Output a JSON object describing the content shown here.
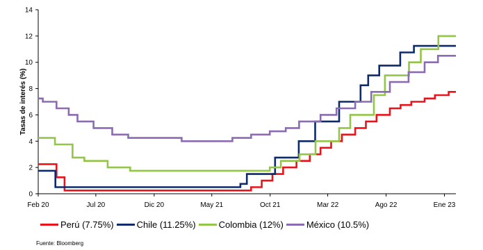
{
  "chart_data": {
    "type": "line",
    "step": true,
    "ylabel": "Tasas de interés (%)",
    "ylim": [
      0,
      14
    ],
    "yticks": [
      0,
      2,
      4,
      6,
      8,
      10,
      12,
      14
    ],
    "xlim": [
      "2020-02-01",
      "2023-01-31"
    ],
    "xticks": [
      {
        "label": "Feb 20",
        "date": "2020-02-01"
      },
      {
        "label": "Jul 20",
        "date": "2020-07-01"
      },
      {
        "label": "Dic 20",
        "date": "2020-12-01"
      },
      {
        "label": "May 21",
        "date": "2021-05-01"
      },
      {
        "label": "Oct 21",
        "date": "2021-10-01"
      },
      {
        "label": "Mar 22",
        "date": "2022-03-01"
      },
      {
        "label": "Ago 22",
        "date": "2022-08-01"
      },
      {
        "label": "Ene 23",
        "date": "2023-01-01"
      }
    ],
    "legend_position": "bottom",
    "series": [
      {
        "name": "Perú (7.75%)",
        "color": "#e8141c",
        "points": [
          [
            "2020-02-01",
            2.25
          ],
          [
            "2020-03-20",
            1.25
          ],
          [
            "2020-04-10",
            0.25
          ],
          [
            "2021-08-12",
            0.5
          ],
          [
            "2021-09-09",
            1.0
          ],
          [
            "2021-10-07",
            1.5
          ],
          [
            "2021-11-04",
            2.0
          ],
          [
            "2021-12-09",
            2.5
          ],
          [
            "2022-01-13",
            3.0
          ],
          [
            "2022-02-10",
            3.5
          ],
          [
            "2022-03-10",
            4.0
          ],
          [
            "2022-04-07",
            4.5
          ],
          [
            "2022-05-12",
            5.0
          ],
          [
            "2022-06-09",
            5.5
          ],
          [
            "2022-07-07",
            6.0
          ],
          [
            "2022-08-11",
            6.5
          ],
          [
            "2022-09-08",
            6.75
          ],
          [
            "2022-10-06",
            7.0
          ],
          [
            "2022-11-10",
            7.25
          ],
          [
            "2022-12-07",
            7.5
          ],
          [
            "2023-01-12",
            7.75
          ],
          [
            "2023-01-31",
            7.75
          ]
        ]
      },
      {
        "name": "Chile (11.25%)",
        "color": "#0d2a6b",
        "points": [
          [
            "2020-02-01",
            1.75
          ],
          [
            "2020-03-17",
            0.5
          ],
          [
            "2021-07-15",
            0.75
          ],
          [
            "2021-08-01",
            1.5
          ],
          [
            "2021-10-14",
            2.75
          ],
          [
            "2021-12-15",
            4.0
          ],
          [
            "2022-01-27",
            5.5
          ],
          [
            "2022-03-31",
            7.0
          ],
          [
            "2022-05-26",
            8.25
          ],
          [
            "2022-06-15",
            9.0
          ],
          [
            "2022-07-14",
            9.75
          ],
          [
            "2022-09-07",
            10.75
          ],
          [
            "2022-10-13",
            11.25
          ],
          [
            "2023-01-31",
            11.25
          ]
        ]
      },
      {
        "name": "Colombia (12%)",
        "color": "#93c549",
        "points": [
          [
            "2020-02-01",
            4.25
          ],
          [
            "2020-03-16",
            3.75
          ],
          [
            "2020-05-01",
            2.75
          ],
          [
            "2020-06-01",
            2.5
          ],
          [
            "2020-08-01",
            2.0
          ],
          [
            "2020-09-29",
            1.75
          ],
          [
            "2021-09-30",
            2.0
          ],
          [
            "2021-10-29",
            2.5
          ],
          [
            "2021-12-17",
            3.0
          ],
          [
            "2022-01-28",
            4.0
          ],
          [
            "2022-03-31",
            5.0
          ],
          [
            "2022-04-29",
            6.0
          ],
          [
            "2022-06-30",
            7.5
          ],
          [
            "2022-07-29",
            9.0
          ],
          [
            "2022-09-30",
            10.0
          ],
          [
            "2022-10-31",
            11.0
          ],
          [
            "2022-12-16",
            12.0
          ],
          [
            "2023-01-31",
            12.0
          ]
        ]
      },
      {
        "name": "México (10.5%)",
        "color": "#8b6bb1",
        "points": [
          [
            "2020-02-01",
            7.25
          ],
          [
            "2020-02-13",
            7.0
          ],
          [
            "2020-03-20",
            6.5
          ],
          [
            "2020-04-21",
            6.0
          ],
          [
            "2020-05-14",
            5.5
          ],
          [
            "2020-06-25",
            5.0
          ],
          [
            "2020-08-13",
            4.5
          ],
          [
            "2020-09-24",
            4.25
          ],
          [
            "2021-02-11",
            4.0
          ],
          [
            "2021-06-24",
            4.25
          ],
          [
            "2021-08-12",
            4.5
          ],
          [
            "2021-09-30",
            4.75
          ],
          [
            "2021-11-11",
            5.0
          ],
          [
            "2021-12-16",
            5.5
          ],
          [
            "2022-02-10",
            6.0
          ],
          [
            "2022-03-24",
            6.5
          ],
          [
            "2022-05-12",
            7.0
          ],
          [
            "2022-06-23",
            7.75
          ],
          [
            "2022-08-11",
            8.5
          ],
          [
            "2022-09-29",
            9.25
          ],
          [
            "2022-11-10",
            10.0
          ],
          [
            "2022-12-15",
            10.5
          ],
          [
            "2023-01-31",
            10.5
          ]
        ]
      }
    ]
  },
  "source": "Fuente: Bloomberg"
}
